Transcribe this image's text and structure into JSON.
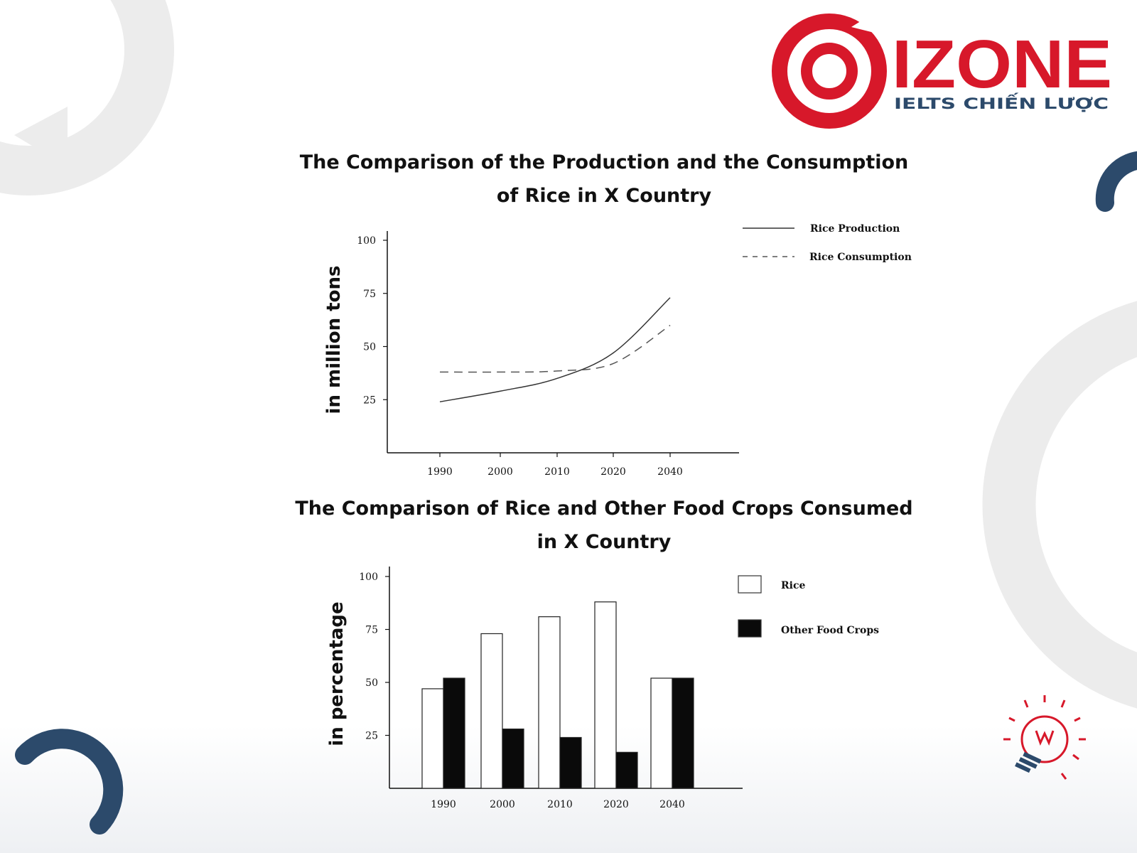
{
  "brand": {
    "name": "IZONE",
    "tagline": "IELTS CHIẾN LƯỢC",
    "color": "#d7182a"
  },
  "colors": {
    "decor_navy": "#2c4a6b",
    "decor_grey": "#ececec"
  },
  "chart_data": [
    {
      "type": "line",
      "title_line1": "The Comparison of the Production and the Consumption",
      "title_line2": "of  Rice  in X Country",
      "xlabel": "",
      "ylabel": "in million tons",
      "x": [
        1990,
        2000,
        2010,
        2020,
        2040
      ],
      "x_tick_labels": [
        "1990",
        "2000",
        "2010",
        "2020",
        "2040"
      ],
      "y_ticks": [
        25,
        50,
        75,
        100
      ],
      "ylim": [
        0,
        105
      ],
      "grid": false,
      "legend_position": "top-right",
      "series": [
        {
          "name": "Rice Production",
          "style": "solid",
          "values": [
            24,
            29,
            35,
            47,
            73
          ]
        },
        {
          "name": "Rice Consumption",
          "style": "dashed",
          "values": [
            38,
            38,
            38.5,
            42,
            60
          ]
        }
      ]
    },
    {
      "type": "bar",
      "title_line1": "The Comparison of Rice and Other Food Crops Consumed",
      "title_line2": "in X Country",
      "xlabel": "",
      "ylabel": "in  percentage",
      "categories": [
        "1990",
        "2000",
        "2010",
        "2020",
        "2040"
      ],
      "y_ticks": [
        25,
        50,
        75,
        100
      ],
      "ylim": [
        0,
        105
      ],
      "grid": false,
      "legend_position": "top-right",
      "series": [
        {
          "name": "Rice",
          "fill": "#ffffff",
          "values": [
            47,
            73,
            81,
            88,
            52
          ]
        },
        {
          "name": "Other Food Crops",
          "fill": "#0a0a0a",
          "values": [
            52,
            28,
            24,
            17,
            52
          ]
        }
      ]
    }
  ]
}
